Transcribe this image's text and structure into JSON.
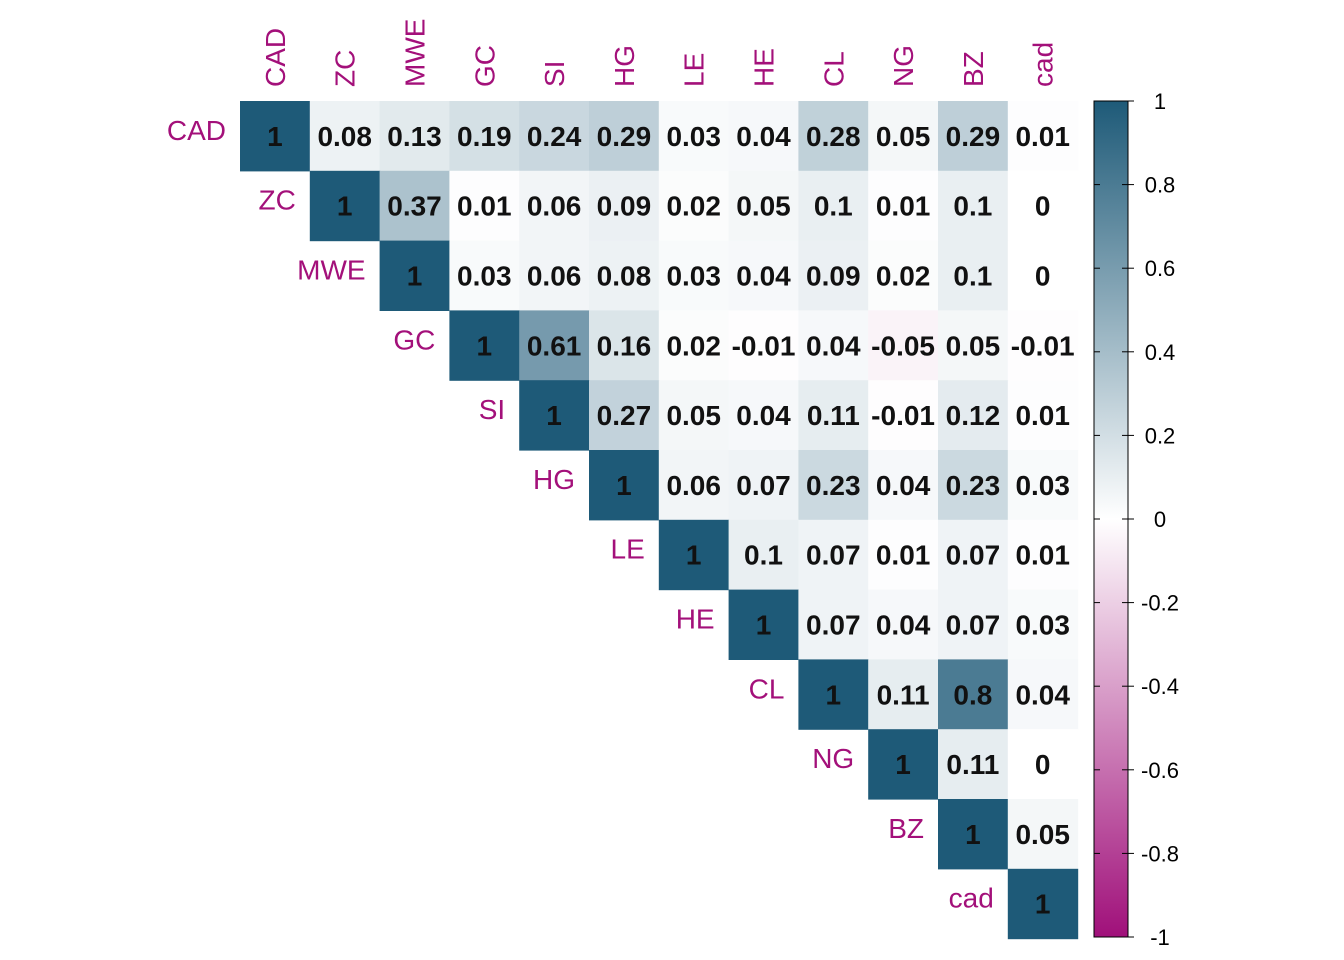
{
  "chart_data": {
    "type": "heatmap",
    "title": "",
    "layout": "upper-triangle",
    "variables": [
      "CAD",
      "ZC",
      "MWE",
      "GC",
      "SI",
      "HG",
      "LE",
      "HE",
      "CL",
      "NG",
      "BZ",
      "cad"
    ],
    "matrix": [
      [
        1,
        0.08,
        0.13,
        0.19,
        0.24,
        0.29,
        0.03,
        0.04,
        0.28,
        0.05,
        0.29,
        0.01
      ],
      [
        null,
        1,
        0.37,
        0.01,
        0.06,
        0.09,
        0.02,
        0.05,
        0.1,
        0.01,
        0.1,
        0
      ],
      [
        null,
        null,
        1,
        0.03,
        0.06,
        0.08,
        0.03,
        0.04,
        0.09,
        0.02,
        0.1,
        0
      ],
      [
        null,
        null,
        null,
        1,
        0.61,
        0.16,
        0.02,
        -0.01,
        0.04,
        -0.05,
        0.05,
        -0.01
      ],
      [
        null,
        null,
        null,
        null,
        1,
        0.27,
        0.05,
        0.04,
        0.11,
        -0.01,
        0.12,
        0.01
      ],
      [
        null,
        null,
        null,
        null,
        null,
        1,
        0.06,
        0.07,
        0.23,
        0.04,
        0.23,
        0.03
      ],
      [
        null,
        null,
        null,
        null,
        null,
        null,
        1,
        0.1,
        0.07,
        0.01,
        0.07,
        0.01
      ],
      [
        null,
        null,
        null,
        null,
        null,
        null,
        null,
        1,
        0.07,
        0.04,
        0.07,
        0.03
      ],
      [
        null,
        null,
        null,
        null,
        null,
        null,
        null,
        null,
        1,
        0.11,
        0.8,
        0.04
      ],
      [
        null,
        null,
        null,
        null,
        null,
        null,
        null,
        null,
        null,
        1,
        0.11,
        0
      ],
      [
        null,
        null,
        null,
        null,
        null,
        null,
        null,
        null,
        null,
        null,
        1,
        0.05
      ],
      [
        null,
        null,
        null,
        null,
        null,
        null,
        null,
        null,
        null,
        null,
        null,
        1
      ]
    ],
    "color_scale": {
      "min": -1,
      "max": 1,
      "low_color": "#a0107a",
      "mid_color": "#ffffff",
      "high_color": "#1e5a78",
      "ticks": [
        1,
        0.8,
        0.6,
        0.4,
        0.2,
        0,
        -0.2,
        -0.4,
        -0.6,
        -0.8,
        -1
      ],
      "tick_labels": [
        "1",
        "0.8",
        "0.6",
        "0.4",
        "0.2",
        "0",
        "-0.2",
        "-0.4",
        "-0.6",
        "-0.8",
        "-1"
      ]
    },
    "label_color": "#a3107a",
    "legend_placement": "right"
  }
}
